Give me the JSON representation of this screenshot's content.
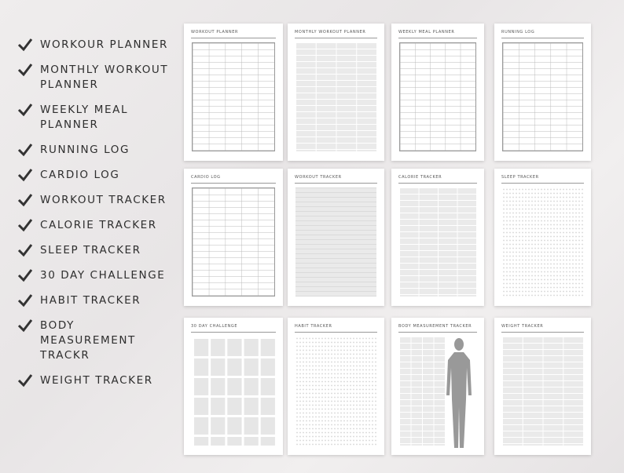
{
  "features": [
    "Workour Planner",
    "Monthly Workout Planner",
    "Weekly Meal Planner",
    "Running Log",
    "Cardio Log",
    "Workout Tracker",
    "Calorie Tracker",
    "Sleep Tracker",
    "30 Day Challenge",
    "Habit Tracker",
    "Body Measurement Trackr",
    "Weight Tracker"
  ],
  "pages": [
    "Workout Planner",
    "Monthly Workout Planner",
    "Weekly Meal Planner",
    "Running Log",
    "Cardio Log",
    "Workout Tracker",
    "Calorie Tracker",
    "Sleep Tracker",
    "30 Day Challenge",
    "Habit Tracker",
    "Body Measurement Tracker",
    "Weight Tracker"
  ],
  "colors": {
    "check": "#333333",
    "background": "#ece9ea",
    "card": "#ffffff"
  },
  "icons": {
    "check": "checkmark-icon"
  }
}
